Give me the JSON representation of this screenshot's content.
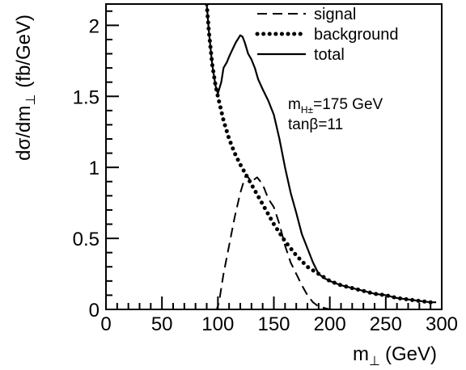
{
  "chart_data": {
    "type": "line",
    "xlabel": {
      "main": "m",
      "sub": "⊥",
      "unit": "(GeV)"
    },
    "ylabel": {
      "pre": "dσ/dm",
      "sub": "⊥",
      "unit": "(fb/GeV)"
    },
    "xlim": [
      0,
      300
    ],
    "ylim": [
      0,
      2.15
    ],
    "x_ticks": [
      0,
      50,
      100,
      150,
      200,
      250,
      300
    ],
    "x_tick_labels": [
      "0",
      "50",
      "100",
      "150",
      "200",
      "250",
      "300"
    ],
    "y_ticks": [
      0,
      0.5,
      1,
      1.5,
      2
    ],
    "y_tick_labels": [
      "0",
      "0.5",
      "1",
      "1.5",
      "2"
    ],
    "grid": false,
    "legend_position": "top-right",
    "annotation": {
      "line1_main": "m",
      "line1_sub": "H±",
      "line1_value": "=175 GeV",
      "line2": "tanβ=11"
    },
    "series": [
      {
        "name": "signal",
        "style": "dashed",
        "x": [
          0,
          99,
          101,
          105,
          110,
          115,
          120,
          125,
          130,
          135,
          140,
          145,
          150,
          155,
          160,
          165,
          170,
          175,
          180,
          185,
          190,
          195,
          200,
          300
        ],
        "y": [
          0,
          0,
          0.05,
          0.25,
          0.45,
          0.65,
          0.82,
          0.95,
          0.9,
          0.93,
          0.88,
          0.78,
          0.72,
          0.6,
          0.45,
          0.33,
          0.25,
          0.17,
          0.1,
          0.05,
          0.02,
          0.01,
          0,
          0
        ]
      },
      {
        "name": "background",
        "style": "dotted",
        "x": [
          90,
          92,
          95,
          98,
          100,
          105,
          110,
          115,
          120,
          130,
          140,
          150,
          160,
          170,
          180,
          190,
          200,
          210,
          220,
          230,
          240,
          250,
          260,
          270,
          280,
          290,
          295
        ],
        "y": [
          2.15,
          1.95,
          1.72,
          1.57,
          1.5,
          1.33,
          1.2,
          1.1,
          1.02,
          0.88,
          0.74,
          0.6,
          0.48,
          0.38,
          0.3,
          0.25,
          0.2,
          0.17,
          0.15,
          0.13,
          0.11,
          0.1,
          0.08,
          0.07,
          0.06,
          0.05,
          0.05
        ]
      },
      {
        "name": "total",
        "style": "solid",
        "x": [
          90,
          92,
          95,
          98,
          100,
          103,
          105,
          108,
          110,
          113,
          116,
          120,
          122,
          124,
          127,
          130,
          133,
          136,
          140,
          145,
          150,
          155,
          160,
          165,
          170,
          175,
          180,
          185,
          190,
          195,
          200,
          210,
          220,
          230,
          240,
          250,
          260,
          270,
          280,
          290,
          295
        ],
        "y": [
          2.15,
          1.95,
          1.72,
          1.57,
          1.52,
          1.6,
          1.7,
          1.74,
          1.78,
          1.83,
          1.88,
          1.93,
          1.92,
          1.88,
          1.8,
          1.76,
          1.7,
          1.62,
          1.55,
          1.47,
          1.37,
          1.2,
          1.0,
          0.82,
          0.68,
          0.53,
          0.43,
          0.33,
          0.25,
          0.22,
          0.2,
          0.17,
          0.15,
          0.13,
          0.11,
          0.1,
          0.08,
          0.07,
          0.06,
          0.05,
          0.05
        ]
      }
    ]
  }
}
